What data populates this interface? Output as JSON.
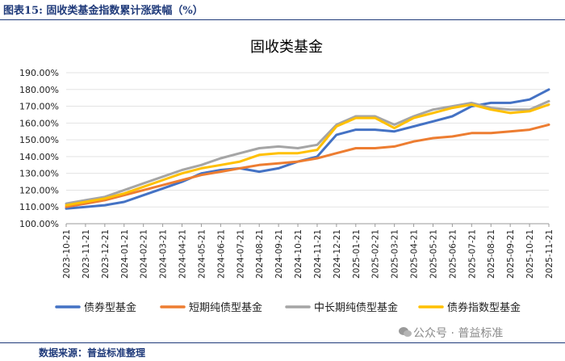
{
  "figure_caption": "图表15:    固收类基金指数累计涨跌幅（%）",
  "source": "数据来源：普益标准整理",
  "watermark": "公众号 · 普益标准",
  "colors": {
    "债券型基金": "#4472C4",
    "短期纯债型基金": "#ED7D31",
    "中长期纯债型基金": "#A5A5A5",
    "债券指数型基金": "#FFC000",
    "header": "#1f3a7a"
  },
  "chart_data": {
    "type": "line",
    "title": "固收类基金",
    "xlabel": "",
    "ylabel": "",
    "ylim": [
      100,
      190
    ],
    "yticks": [
      100,
      110,
      120,
      130,
      140,
      150,
      160,
      170,
      180,
      190
    ],
    "ytick_labels": [
      "100.00%",
      "110.00%",
      "120.00%",
      "130.00%",
      "140.00%",
      "150.00%",
      "160.00%",
      "170.00%",
      "180.00%",
      "190.00%"
    ],
    "x_labels": [
      "2023-10-21",
      "2023-11-21",
      "2023-12-21",
      "2024-01-21",
      "2024-02-21",
      "2024-03-21",
      "2024-04-21",
      "2024-05-21",
      "2024-06-21",
      "2024-07-21",
      "2024-08-21",
      "2024-09-21",
      "2024-10-21",
      "2024-11-21",
      "2024-12-21",
      "2025-01-21",
      "2025-02-21",
      "2025-03-21",
      "2025-04-21",
      "2025-05-21",
      "2025-06-21",
      "2025-07-21",
      "2025-08-21",
      "2025-09-21",
      "2025-10-21",
      "2025-11-21"
    ],
    "legend_position": "bottom",
    "series": [
      {
        "name": "债券型基金",
        "values": [
          109,
          110,
          111,
          113,
          117,
          121,
          125,
          130,
          132,
          133,
          131,
          133,
          137,
          140,
          153,
          156,
          156,
          155,
          158,
          161,
          164,
          170,
          172,
          172,
          174,
          180
        ]
      },
      {
        "name": "短期纯债型基金",
        "values": [
          110,
          112,
          114,
          117,
          120,
          123,
          126,
          129,
          131,
          133,
          135,
          136,
          137,
          139,
          142,
          145,
          145,
          146,
          149,
          151,
          152,
          154,
          154,
          155,
          156,
          159
        ]
      },
      {
        "name": "中长期纯债型基金",
        "values": [
          112,
          114,
          116,
          120,
          124,
          128,
          132,
          135,
          139,
          142,
          145,
          146,
          145,
          147,
          159,
          164,
          164,
          159,
          164,
          168,
          170,
          172,
          169,
          168,
          168,
          173
        ]
      },
      {
        "name": "债券指数型基金",
        "values": [
          111,
          113,
          115,
          118,
          122,
          126,
          130,
          133,
          135,
          137,
          141,
          142,
          142,
          144,
          158,
          163,
          163,
          157,
          163,
          166,
          169,
          171,
          168,
          166,
          167,
          171
        ]
      }
    ]
  }
}
